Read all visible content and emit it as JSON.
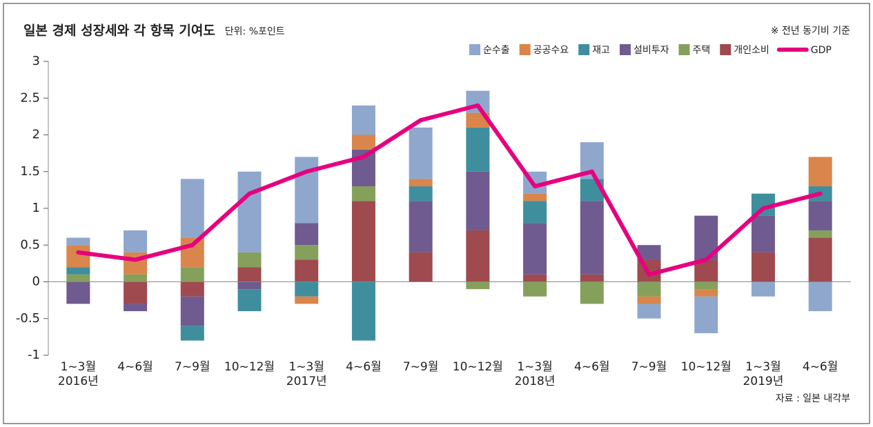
{
  "chart_data": {
    "type": "bar",
    "stacked": true,
    "title": "일본 경제 성장세와 각 항목 기여도",
    "subtitle": "단위: %포인트",
    "note": "※ 전년 동기비 기준",
    "source": "자료 : 일본 내각부",
    "categories": [
      "1~3월",
      "4~6월",
      "7~9월",
      "10~12월",
      "1~3월",
      "4~6월",
      "7~9월",
      "10~12월",
      "1~3월",
      "4~6월",
      "7~9월",
      "10~12월",
      "1~3월",
      "4~6월"
    ],
    "year_labels": [
      "2016년",
      null,
      null,
      null,
      "2017년",
      null,
      null,
      null,
      "2018년",
      null,
      null,
      null,
      "2019년",
      null
    ],
    "series": [
      {
        "name": "순수출",
        "color": "#8fa7cd",
        "values": [
          0.1,
          0.3,
          0.8,
          1.1,
          0.9,
          0.4,
          0.7,
          0.3,
          0.3,
          0.5,
          -0.2,
          -0.5,
          -0.2,
          -0.4
        ]
      },
      {
        "name": "공공수요",
        "color": "#d9854b",
        "values": [
          0.3,
          0.3,
          0.4,
          0,
          -0.1,
          0.2,
          0.1,
          0.2,
          0.1,
          0,
          -0.1,
          -0.1,
          0,
          0.4
        ]
      },
      {
        "name": "재고",
        "color": "#3f8e9e",
        "values": [
          0.1,
          0,
          -0.2,
          -0.3,
          -0.2,
          -0.8,
          0.2,
          0.6,
          0.3,
          0.3,
          0,
          0,
          0.3,
          0.2
        ]
      },
      {
        "name": "설비투자",
        "color": "#6f5b8f",
        "values": [
          -0.3,
          -0.1,
          -0.4,
          -0.1,
          0.3,
          0.5,
          0.7,
          0.8,
          0.7,
          1.0,
          0.2,
          0.6,
          0.5,
          0.4
        ]
      },
      {
        "name": "주택",
        "color": "#85a05b",
        "values": [
          0.1,
          0.1,
          0.2,
          0.2,
          0.2,
          0.2,
          0,
          -0.1,
          -0.2,
          -0.3,
          -0.2,
          -0.1,
          0,
          0.1
        ]
      },
      {
        "name": "개인소비",
        "color": "#9e4a4f",
        "values": [
          0,
          -0.3,
          -0.2,
          0.2,
          0.3,
          1.1,
          0.4,
          0.7,
          0.1,
          0.1,
          0.3,
          0.3,
          0.4,
          0.6
        ]
      }
    ],
    "line_series": {
      "name": "GDP",
      "color": "#e6007f",
      "values": [
        0.4,
        0.3,
        0.5,
        1.2,
        1.5,
        1.7,
        2.2,
        2.4,
        1.3,
        1.5,
        0.1,
        0.3,
        1.0,
        1.2
      ]
    },
    "ylim": [
      -1,
      3
    ],
    "yticks": [
      -1,
      -0.5,
      0,
      0.5,
      1,
      1.5,
      2,
      2.5,
      3
    ]
  }
}
